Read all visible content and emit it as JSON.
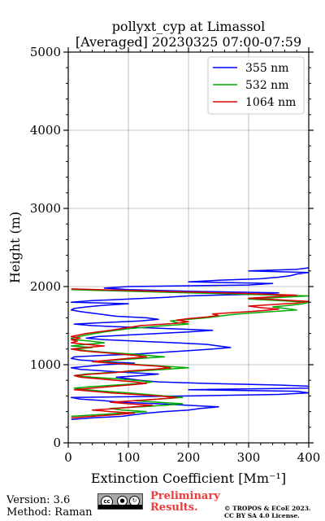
{
  "chart_data": {
    "type": "line",
    "title_line1": "pollyxt_cyp at Limassol",
    "title_line2": "[Averaged] 20230325 07:00-07:59",
    "xlabel": "Extinction Coefficient [Mm⁻¹]",
    "ylabel": "Height (m)",
    "xlim": [
      0,
      400
    ],
    "ylim": [
      0,
      5000
    ],
    "x_ticks": [
      "0",
      "100",
      "200",
      "300",
      "400"
    ],
    "y_ticks": [
      "0",
      "1000",
      "2000",
      "3000",
      "4000",
      "5000"
    ],
    "grid": true,
    "legend_position": "top-right",
    "series": [
      {
        "name": "355 nm",
        "color": "#0000ff",
        "points": [
          [
            5,
            300
          ],
          [
            40,
            320
          ],
          [
            90,
            340
          ],
          [
            110,
            360
          ],
          [
            130,
            380
          ],
          [
            160,
            400
          ],
          [
            200,
            420
          ],
          [
            220,
            440
          ],
          [
            250,
            460
          ],
          [
            200,
            480
          ],
          [
            150,
            500
          ],
          [
            90,
            520
          ],
          [
            60,
            540
          ],
          [
            20,
            560
          ],
          [
            5,
            580
          ],
          [
            200,
            600
          ],
          [
            350,
            620
          ],
          [
            400,
            640
          ],
          [
            380,
            660
          ],
          [
            200,
            680
          ],
          [
            400,
            700
          ],
          [
            420,
            720
          ],
          [
            350,
            740
          ],
          [
            230,
            760
          ],
          [
            150,
            780
          ],
          [
            120,
            800
          ],
          [
            100,
            820
          ],
          [
            80,
            840
          ],
          [
            120,
            860
          ],
          [
            150,
            880
          ],
          [
            100,
            900
          ],
          [
            60,
            920
          ],
          [
            20,
            940
          ],
          [
            5,
            960
          ],
          [
            60,
            1000
          ],
          [
            110,
            1020
          ],
          [
            60,
            1040
          ],
          [
            20,
            1060
          ],
          [
            5,
            1080
          ],
          [
            10,
            1100
          ],
          [
            60,
            1120
          ],
          [
            120,
            1140
          ],
          [
            160,
            1160
          ],
          [
            200,
            1180
          ],
          [
            240,
            1200
          ],
          [
            270,
            1220
          ],
          [
            250,
            1240
          ],
          [
            230,
            1260
          ],
          [
            180,
            1280
          ],
          [
            120,
            1300
          ],
          [
            60,
            1320
          ],
          [
            30,
            1340
          ],
          [
            50,
            1360
          ],
          [
            100,
            1380
          ],
          [
            150,
            1400
          ],
          [
            200,
            1420
          ],
          [
            240,
            1440
          ],
          [
            170,
            1460
          ],
          [
            100,
            1480
          ],
          [
            40,
            1500
          ],
          [
            10,
            1520
          ],
          [
            60,
            1540
          ],
          [
            120,
            1560
          ],
          [
            150,
            1580
          ],
          [
            130,
            1600
          ],
          [
            80,
            1620
          ],
          [
            60,
            1640
          ],
          [
            40,
            1660
          ],
          [
            20,
            1680
          ],
          [
            5,
            1700
          ],
          [
            10,
            1720
          ],
          [
            30,
            1740
          ],
          [
            60,
            1760
          ],
          [
            100,
            1780
          ],
          [
            5,
            1800
          ],
          [
            40,
            1820
          ],
          [
            100,
            1840
          ],
          [
            160,
            1860
          ],
          [
            200,
            1880
          ],
          [
            300,
            1900
          ],
          [
            350,
            1920
          ],
          [
            200,
            1940
          ],
          [
            100,
            1960
          ],
          [
            60,
            1980
          ],
          [
            100,
            2000
          ],
          [
            300,
            2020
          ],
          [
            340,
            2040
          ],
          [
            200,
            2060
          ],
          [
            250,
            2080
          ],
          [
            320,
            2100
          ],
          [
            350,
            2120
          ],
          [
            370,
            2140
          ],
          [
            380,
            2160
          ],
          [
            400,
            2180
          ],
          [
            300,
            2200
          ],
          [
            380,
            2220
          ],
          [
            400,
            2240
          ]
        ]
      },
      {
        "name": "532 nm",
        "color": "#00aa00",
        "points": [
          [
            5,
            340
          ],
          [
            50,
            360
          ],
          [
            90,
            380
          ],
          [
            130,
            400
          ],
          [
            90,
            420
          ],
          [
            70,
            440
          ],
          [
            120,
            460
          ],
          [
            160,
            480
          ],
          [
            190,
            500
          ],
          [
            150,
            520
          ],
          [
            110,
            540
          ],
          [
            150,
            560
          ],
          [
            190,
            580
          ],
          [
            160,
            600
          ],
          [
            130,
            620
          ],
          [
            100,
            640
          ],
          [
            60,
            660
          ],
          [
            30,
            680
          ],
          [
            10,
            700
          ],
          [
            40,
            720
          ],
          [
            80,
            740
          ],
          [
            120,
            760
          ],
          [
            140,
            780
          ],
          [
            110,
            800
          ],
          [
            80,
            820
          ],
          [
            40,
            840
          ],
          [
            10,
            860
          ],
          [
            30,
            880
          ],
          [
            70,
            900
          ],
          [
            120,
            920
          ],
          [
            160,
            940
          ],
          [
            200,
            960
          ],
          [
            160,
            980
          ],
          [
            120,
            1000
          ],
          [
            80,
            1020
          ],
          [
            50,
            1040
          ],
          [
            80,
            1060
          ],
          [
            120,
            1080
          ],
          [
            160,
            1100
          ],
          [
            130,
            1120
          ],
          [
            100,
            1140
          ],
          [
            60,
            1160
          ],
          [
            30,
            1180
          ],
          [
            10,
            1200
          ],
          [
            40,
            1220
          ],
          [
            5,
            1240
          ],
          [
            30,
            1260
          ],
          [
            60,
            1280
          ],
          [
            40,
            1300
          ],
          [
            10,
            1320
          ],
          [
            5,
            1340
          ],
          [
            30,
            1380
          ],
          [
            60,
            1420
          ],
          [
            100,
            1460
          ],
          [
            160,
            1500
          ],
          [
            200,
            1520
          ],
          [
            180,
            1540
          ],
          [
            170,
            1560
          ],
          [
            200,
            1580
          ],
          [
            230,
            1600
          ],
          [
            250,
            1620
          ],
          [
            270,
            1640
          ],
          [
            300,
            1660
          ],
          [
            340,
            1680
          ],
          [
            380,
            1700
          ],
          [
            360,
            1720
          ],
          [
            340,
            1740
          ],
          [
            370,
            1760
          ],
          [
            390,
            1780
          ],
          [
            400,
            1800
          ],
          [
            350,
            1820
          ],
          [
            300,
            1840
          ],
          [
            350,
            1860
          ],
          [
            400,
            1880
          ],
          [
            300,
            1900
          ],
          [
            200,
            1920
          ],
          [
            100,
            1940
          ],
          [
            5,
            1960
          ]
        ]
      },
      {
        "name": "1064 nm",
        "color": "#dd0000",
        "points": [
          [
            5,
            320
          ],
          [
            40,
            340
          ],
          [
            80,
            360
          ],
          [
            110,
            380
          ],
          [
            70,
            400
          ],
          [
            40,
            420
          ],
          [
            80,
            440
          ],
          [
            110,
            460
          ],
          [
            140,
            480
          ],
          [
            100,
            500
          ],
          [
            70,
            520
          ],
          [
            110,
            540
          ],
          [
            150,
            560
          ],
          [
            180,
            580
          ],
          [
            150,
            600
          ],
          [
            110,
            620
          ],
          [
            70,
            640
          ],
          [
            40,
            660
          ],
          [
            10,
            680
          ],
          [
            40,
            700
          ],
          [
            70,
            720
          ],
          [
            100,
            740
          ],
          [
            130,
            760
          ],
          [
            110,
            780
          ],
          [
            80,
            800
          ],
          [
            50,
            820
          ],
          [
            20,
            840
          ],
          [
            10,
            860
          ],
          [
            40,
            880
          ],
          [
            80,
            900
          ],
          [
            100,
            920
          ],
          [
            140,
            940
          ],
          [
            170,
            960
          ],
          [
            150,
            980
          ],
          [
            110,
            1000
          ],
          [
            70,
            1020
          ],
          [
            40,
            1040
          ],
          [
            70,
            1060
          ],
          [
            100,
            1080
          ],
          [
            130,
            1100
          ],
          [
            110,
            1120
          ],
          [
            80,
            1140
          ],
          [
            50,
            1160
          ],
          [
            20,
            1180
          ],
          [
            5,
            1200
          ],
          [
            30,
            1220
          ],
          [
            60,
            1240
          ],
          [
            30,
            1260
          ],
          [
            5,
            1280
          ],
          [
            15,
            1300
          ],
          [
            5,
            1320
          ],
          [
            20,
            1340
          ],
          [
            5,
            1360
          ],
          [
            30,
            1400
          ],
          [
            70,
            1440
          ],
          [
            120,
            1500
          ],
          [
            180,
            1530
          ],
          [
            200,
            1550
          ],
          [
            180,
            1570
          ],
          [
            200,
            1590
          ],
          [
            230,
            1610
          ],
          [
            250,
            1630
          ],
          [
            240,
            1650
          ],
          [
            280,
            1670
          ],
          [
            320,
            1690
          ],
          [
            350,
            1710
          ],
          [
            320,
            1730
          ],
          [
            300,
            1750
          ],
          [
            340,
            1770
          ],
          [
            380,
            1790
          ],
          [
            400,
            1810
          ],
          [
            350,
            1830
          ],
          [
            300,
            1850
          ],
          [
            340,
            1870
          ],
          [
            380,
            1890
          ],
          [
            300,
            1910
          ],
          [
            200,
            1930
          ],
          [
            100,
            1950
          ],
          [
            5,
            1970
          ]
        ]
      }
    ]
  },
  "footer": {
    "version": "Version: 3.6",
    "method": "Method: Raman",
    "cc_label": "cc",
    "preliminary_line1": "Preliminary",
    "preliminary_line2": "Results.",
    "license_line1": "© TROPOS & ECoE 2023.",
    "license_line2": "CC BY SA 4.0 License."
  }
}
